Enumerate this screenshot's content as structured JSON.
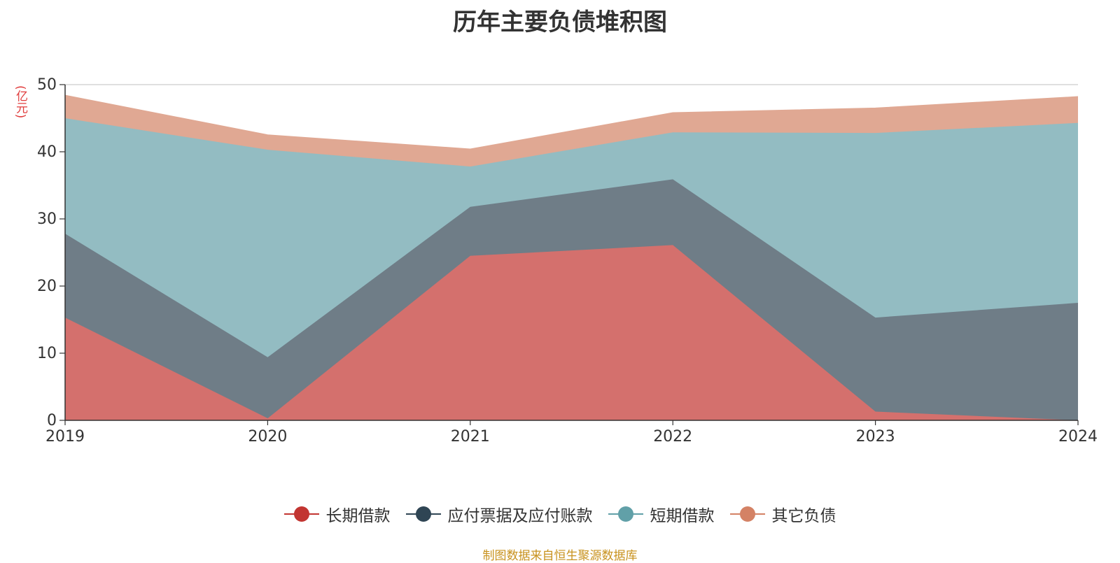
{
  "chart_data": {
    "type": "area",
    "stacked": true,
    "title": "历年主要负债堆积图",
    "unit_label": "(亿元)",
    "x": [
      "2019",
      "2020",
      "2021",
      "2022",
      "2023",
      "2024"
    ],
    "ylim": [
      0,
      50
    ],
    "yticks": [
      "0",
      "10",
      "20",
      "30",
      "40",
      "50"
    ],
    "grid": true,
    "legend_position": "bottom",
    "series": [
      {
        "name": "长期借款",
        "values": [
          15.3,
          0.3,
          24.5,
          26.1,
          1.3,
          0.0
        ],
        "color": "#c23531",
        "fill": "#d4706d"
      },
      {
        "name": "应付票据及应付账款",
        "values": [
          12.5,
          9.1,
          7.3,
          9.8,
          14.0,
          17.5
        ],
        "color": "#2f4554",
        "fill": "#6f7d87"
      },
      {
        "name": "短期借款",
        "values": [
          17.2,
          30.9,
          6.0,
          7.0,
          27.5,
          26.8
        ],
        "color": "#61a0a8",
        "fill": "#93bcc2"
      },
      {
        "name": "其它负债",
        "values": [
          3.4,
          2.2,
          2.6,
          2.9,
          3.7,
          3.9
        ],
        "color": "#d48265",
        "fill": "#e0a893"
      }
    ],
    "source_note": "制图数据来自恒生聚源数据库"
  }
}
